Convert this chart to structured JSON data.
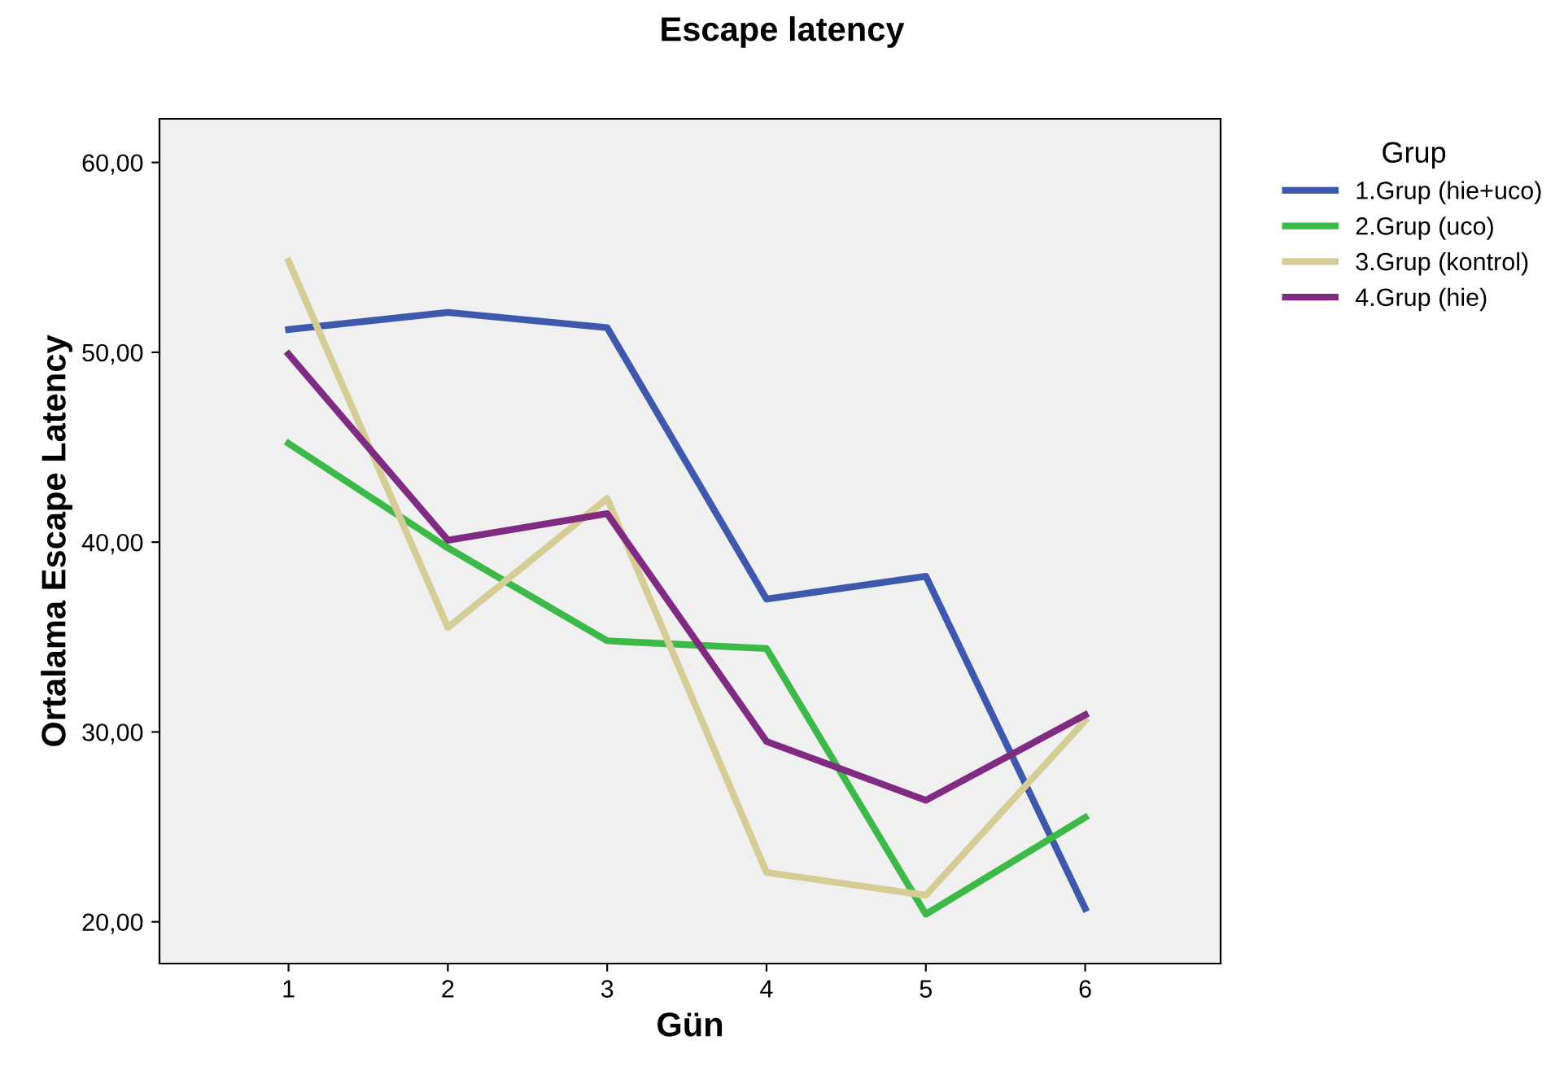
{
  "chart_data": {
    "type": "line",
    "title": "Escape latency",
    "xlabel": "Gün",
    "ylabel": "Ortalama Escape Latency",
    "legend_title": "Grup",
    "legend": "right",
    "x": [
      1,
      2,
      3,
      4,
      5,
      6
    ],
    "series": [
      {
        "name": "1.Grup (hie+uco)",
        "color": "#3e58ac",
        "values": [
          51.2,
          52.1,
          51.3,
          37.0,
          38.2,
          20.7
        ]
      },
      {
        "name": "2.Grup (uco)",
        "color": "#3cb946",
        "values": [
          45.2,
          39.7,
          34.8,
          34.4,
          20.4,
          25.5
        ]
      },
      {
        "name": "3.Grup (kontrol)",
        "color": "#d5cc96",
        "values": [
          54.8,
          35.5,
          42.3,
          22.6,
          21.4,
          30.6
        ]
      },
      {
        "name": "4.Grup (hie)",
        "color": "#7f2b82",
        "values": [
          49.9,
          40.1,
          41.5,
          29.5,
          26.4,
          30.9
        ]
      }
    ],
    "xlim": [
      0.19,
      6.85
    ],
    "xticks": [
      1,
      2,
      3,
      4,
      5,
      6
    ],
    "ylim": [
      17.8,
      62.3
    ],
    "yticks": [
      {
        "value": 20,
        "label": "20,00"
      },
      {
        "value": 30,
        "label": "30,00"
      },
      {
        "value": 40,
        "label": "40,00"
      },
      {
        "value": 50,
        "label": "50,00"
      },
      {
        "value": 60,
        "label": "60,00"
      }
    ],
    "grid": false,
    "marker": "none",
    "line_style": "solid"
  }
}
